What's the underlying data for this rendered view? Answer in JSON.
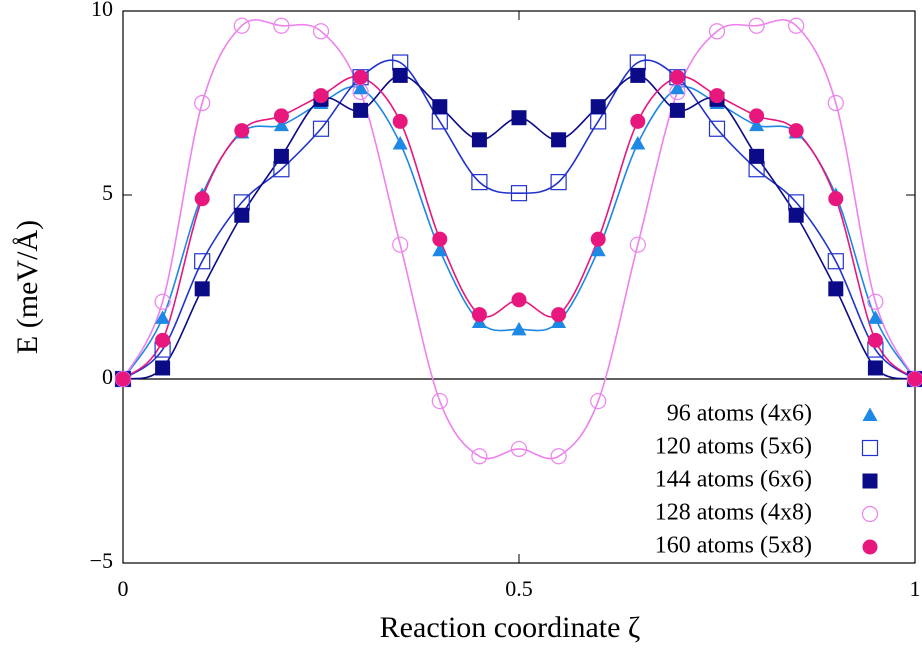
{
  "chart_data": {
    "type": "line",
    "xlabel": "Reaction coordinate ζ",
    "ylabel": "E (meV/Å)",
    "x": [
      0,
      0.05,
      0.1,
      0.15,
      0.2,
      0.25,
      0.3,
      0.35,
      0.4,
      0.45,
      0.5,
      0.55,
      0.6,
      0.65,
      0.7,
      0.75,
      0.8,
      0.85,
      0.9,
      0.95,
      1
    ],
    "xlim": [
      0,
      1
    ],
    "xticks": [
      0,
      0.5,
      1
    ],
    "ylim": [
      -5,
      10
    ],
    "yticks": [
      {
        "value": -5,
        "label": "−5"
      },
      0,
      5,
      10
    ],
    "zero_line": true,
    "legend": "lower right",
    "series": [
      {
        "name": "96 atoms (4x6)",
        "color": "#1e88e5",
        "marker": "triangle",
        "values": [
          0,
          1.66,
          5.0,
          6.7,
          6.9,
          7.5,
          7.9,
          6.4,
          3.5,
          1.55,
          1.35,
          1.55,
          3.5,
          6.4,
          7.9,
          7.5,
          6.9,
          6.7,
          5.0,
          1.66,
          0
        ]
      },
      {
        "name": "120 atoms (5x6)",
        "color": "#2233cc",
        "marker": "open-square",
        "values": [
          0,
          0.8,
          3.2,
          4.8,
          5.7,
          6.8,
          8.2,
          8.6,
          7.0,
          5.35,
          5.05,
          5.35,
          7.0,
          8.6,
          8.2,
          6.8,
          5.7,
          4.8,
          3.2,
          0.8,
          0
        ]
      },
      {
        "name": "144 atoms (6x6)",
        "color": "#0b0b88",
        "marker": "filled-square",
        "values": [
          0,
          0.3,
          2.45,
          4.45,
          6.05,
          7.6,
          7.3,
          8.25,
          7.4,
          6.5,
          7.1,
          6.5,
          7.4,
          8.25,
          7.3,
          7.6,
          6.05,
          4.45,
          2.45,
          0.3,
          0
        ]
      },
      {
        "name": "128 atoms (4x8)",
        "color": "#ee82ee",
        "marker": "open-circle",
        "values": [
          0,
          2.1,
          7.5,
          9.6,
          9.6,
          9.45,
          7.8,
          3.65,
          -0.6,
          -2.1,
          -1.9,
          -2.1,
          -0.6,
          3.65,
          7.8,
          9.45,
          9.6,
          9.6,
          7.5,
          2.1,
          0
        ]
      },
      {
        "name": "160 atoms (5x8)",
        "color": "#e8177d",
        "marker": "filled-circle",
        "values": [
          0,
          1.05,
          4.9,
          6.75,
          7.15,
          7.7,
          8.2,
          7.0,
          3.8,
          1.75,
          2.15,
          1.75,
          3.8,
          7.0,
          8.2,
          7.7,
          7.15,
          6.75,
          4.9,
          1.05,
          0
        ]
      }
    ]
  }
}
